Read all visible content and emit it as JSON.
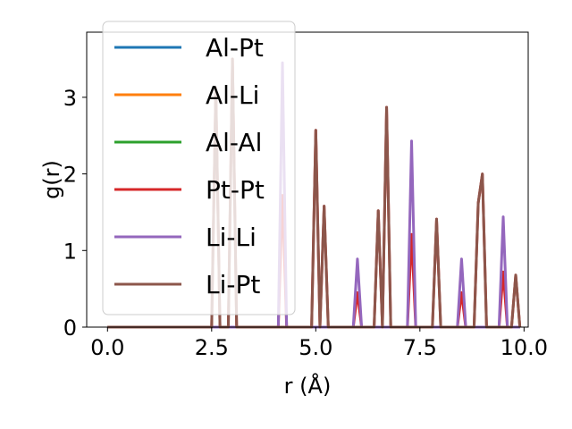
{
  "chart_data": {
    "type": "line",
    "xlabel": "r (Å)",
    "ylabel": "g(r)",
    "xlim": [
      -0.5,
      10.1
    ],
    "ylim": [
      0,
      3.85
    ],
    "xticks": [
      0.0,
      2.5,
      5.0,
      7.5,
      10.0
    ],
    "xtick_labels": [
      "0.0",
      "2.5",
      "5.0",
      "7.5",
      "10.0"
    ],
    "yticks": [
      0,
      1,
      2,
      3
    ],
    "ytick_labels": [
      "0",
      "1",
      "2",
      "3"
    ],
    "grid": false,
    "legend_position": "upper-left",
    "series": [
      {
        "name": "Al-Pt",
        "color": "#1f77b4",
        "x": [
          0.0,
          9.9
        ],
        "y": [
          0,
          0
        ]
      },
      {
        "name": "Al-Li",
        "color": "#ff7f0e",
        "x": [
          0.0,
          9.9
        ],
        "y": [
          0,
          0
        ]
      },
      {
        "name": "Al-Al",
        "color": "#2ca02c",
        "x": [
          0.0,
          9.9
        ],
        "y": [
          0,
          0
        ]
      },
      {
        "name": "Pt-Pt",
        "color": "#d62728",
        "x": [
          0.0,
          2.5,
          2.6,
          2.7,
          2.9,
          3.0,
          3.1,
          4.1,
          4.2,
          4.3,
          4.9,
          5.0,
          5.1,
          5.2,
          5.3,
          5.9,
          6.0,
          6.1,
          6.4,
          6.5,
          6.6,
          6.7,
          6.8,
          7.2,
          7.3,
          7.4,
          7.8,
          7.9,
          8.0,
          8.4,
          8.5,
          8.6,
          8.8,
          8.9,
          9.0,
          9.1,
          9.4,
          9.5,
          9.6,
          9.7,
          9.8,
          9.9
        ],
        "y": [
          0,
          0,
          3.12,
          0,
          0,
          3.5,
          0,
          0,
          1.72,
          0,
          0,
          2.57,
          0,
          1.58,
          0,
          0,
          0.45,
          0,
          0,
          1.52,
          0,
          2.87,
          0,
          0,
          1.21,
          0,
          0,
          1.41,
          0,
          0,
          0.45,
          0,
          0,
          1.62,
          2.0,
          0,
          0,
          0.72,
          0,
          0,
          0.68,
          0
        ]
      },
      {
        "name": "Li-Li",
        "color": "#9467bd",
        "x": [
          0.0,
          4.1,
          4.2,
          4.3,
          5.9,
          6.0,
          6.1,
          7.2,
          7.3,
          7.4,
          8.4,
          8.5,
          8.6,
          9.4,
          9.5,
          9.6,
          9.8,
          9.9
        ],
        "y": [
          0,
          0,
          3.45,
          0,
          0,
          0.89,
          0,
          0,
          2.43,
          0,
          0,
          0.89,
          0,
          0,
          1.44,
          0,
          0,
          0
        ]
      },
      {
        "name": "Li-Pt",
        "color": "#8c564b",
        "x": [
          0.0,
          2.5,
          2.6,
          2.7,
          2.9,
          3.0,
          3.1,
          4.9,
          5.0,
          5.1,
          5.2,
          5.3,
          6.4,
          6.5,
          6.6,
          6.7,
          6.8,
          7.8,
          7.9,
          8.0,
          8.8,
          8.9,
          9.0,
          9.1,
          9.7,
          9.8,
          9.9
        ],
        "y": [
          0,
          0,
          3.12,
          0,
          0,
          3.5,
          0,
          0,
          2.57,
          0,
          1.58,
          0,
          0,
          1.52,
          0,
          2.87,
          0,
          0,
          1.41,
          0,
          0,
          1.62,
          2.0,
          0,
          0,
          0.68,
          0
        ]
      }
    ]
  }
}
